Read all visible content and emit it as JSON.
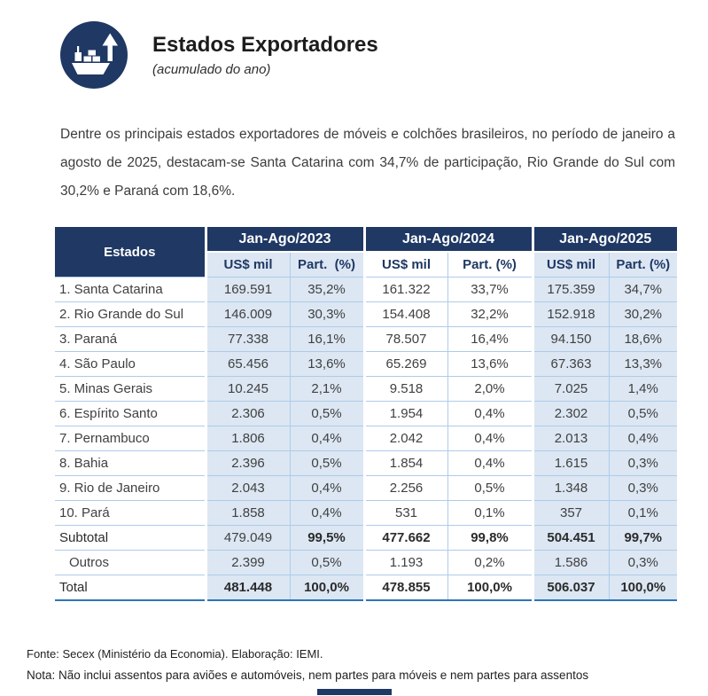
{
  "colors": {
    "navy": "#1f3864",
    "cellblue": "#dce7f3",
    "line": "#aecbea",
    "totline": "#2e75b6"
  },
  "header": {
    "title": "Estados Exportadores",
    "subtitle": "(acumulado do ano)",
    "icon": "ship-export-icon"
  },
  "intro": "Dentre os principais estados exportadores de móveis e colchões brasileiros, no período de janeiro a agosto de 2025, destacam-se Santa Catarina com 34,7% de participação, Rio Grande do Sul com 30,2% e Paraná com 18,6%.",
  "table": {
    "estados_header": "Estados",
    "groups": [
      {
        "label": "Jan-Ago/2023",
        "sub": [
          "US$ mil",
          "Part.  (%)"
        ]
      },
      {
        "label": "Jan-Ago/2024",
        "sub": [
          "US$ mil",
          "Part. (%)"
        ]
      },
      {
        "label": "Jan-Ago/2025",
        "sub": [
          "US$ mil",
          "Part. (%)"
        ]
      }
    ],
    "rows": [
      {
        "label": "1. Santa Catarina",
        "values": [
          "169.591",
          "35,2%",
          "161.322",
          "33,7%",
          "175.359",
          "34,7%"
        ],
        "bold": [
          0,
          0,
          0,
          0,
          0,
          0,
          0
        ],
        "indent": false
      },
      {
        "label": "2. Rio Grande do Sul",
        "values": [
          "146.009",
          "30,3%",
          "154.408",
          "32,2%",
          "152.918",
          "30,2%"
        ],
        "bold": [
          0,
          0,
          0,
          0,
          0,
          0,
          0
        ],
        "indent": false
      },
      {
        "label": "3. Paraná",
        "values": [
          "77.338",
          "16,1%",
          "78.507",
          "16,4%",
          "94.150",
          "18,6%"
        ],
        "bold": [
          0,
          0,
          0,
          0,
          0,
          0,
          0
        ],
        "indent": false
      },
      {
        "label": "4. São Paulo",
        "values": [
          "65.456",
          "13,6%",
          "65.269",
          "13,6%",
          "67.363",
          "13,3%"
        ],
        "bold": [
          0,
          0,
          0,
          0,
          0,
          0,
          0
        ],
        "indent": false
      },
      {
        "label": "5. Minas Gerais",
        "values": [
          "10.245",
          "2,1%",
          "9.518",
          "2,0%",
          "7.025",
          "1,4%"
        ],
        "bold": [
          0,
          0,
          0,
          0,
          0,
          0,
          0
        ],
        "indent": false
      },
      {
        "label": "6. Espírito Santo",
        "values": [
          "2.306",
          "0,5%",
          "1.954",
          "0,4%",
          "2.302",
          "0,5%"
        ],
        "bold": [
          0,
          0,
          0,
          0,
          0,
          0,
          0
        ],
        "indent": false
      },
      {
        "label": "7. Pernambuco",
        "values": [
          "1.806",
          "0,4%",
          "2.042",
          "0,4%",
          "2.013",
          "0,4%"
        ],
        "bold": [
          0,
          0,
          0,
          0,
          0,
          0,
          0
        ],
        "indent": false
      },
      {
        "label": "8. Bahia",
        "values": [
          "2.396",
          "0,5%",
          "1.854",
          "0,4%",
          "1.615",
          "0,3%"
        ],
        "bold": [
          0,
          0,
          0,
          0,
          0,
          0,
          0
        ],
        "indent": false
      },
      {
        "label": "9. Rio de Janeiro",
        "values": [
          "2.043",
          "0,4%",
          "2.256",
          "0,5%",
          "1.348",
          "0,3%"
        ],
        "bold": [
          0,
          0,
          0,
          0,
          0,
          0,
          0
        ],
        "indent": false
      },
      {
        "label": "10. Pará",
        "values": [
          "1.858",
          "0,4%",
          "531",
          "0,1%",
          "357",
          "0,1%"
        ],
        "bold": [
          0,
          0,
          0,
          0,
          0,
          0,
          0
        ],
        "indent": false
      },
      {
        "label": "Subtotal",
        "values": [
          "479.049",
          "99,5%",
          "477.662",
          "99,8%",
          "504.451",
          "99,7%"
        ],
        "bold": [
          1,
          0,
          1,
          1,
          1,
          1,
          1
        ],
        "indent": false
      },
      {
        "label": "Outros",
        "values": [
          "2.399",
          "0,5%",
          "1.193",
          "0,2%",
          "1.586",
          "0,3%"
        ],
        "bold": [
          0,
          0,
          0,
          0,
          0,
          0,
          0
        ],
        "indent": true
      },
      {
        "label": "Total",
        "values": [
          "481.448",
          "100,0%",
          "478.855",
          "100,0%",
          "506.037",
          "100,0%"
        ],
        "bold": [
          1,
          1,
          1,
          1,
          1,
          1,
          1
        ],
        "indent": false,
        "total": true
      }
    ]
  },
  "footer": {
    "fonte": "Fonte: Secex (Ministério da Economia). Elaboração: IEMI.",
    "nota": "Nota: Não inclui assentos para aviões e automóveis, nem partes para móveis e nem partes para assentos"
  }
}
